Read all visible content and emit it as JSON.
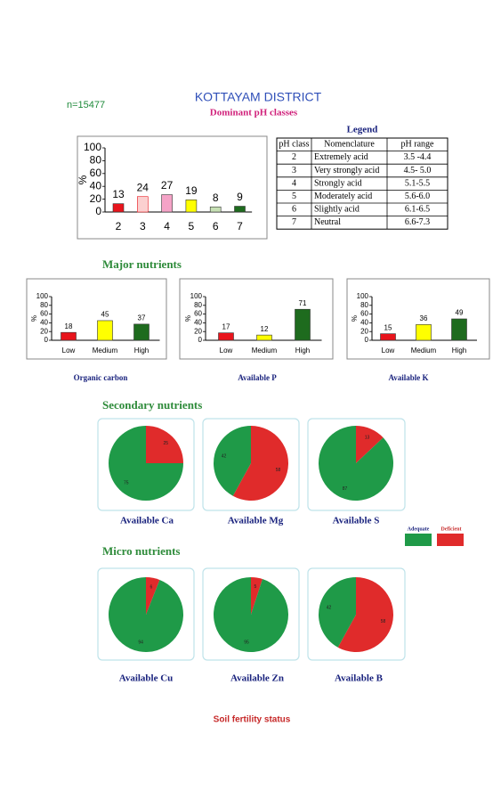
{
  "header": {
    "title": "KOTTAYAM  DISTRICT",
    "subtitle": "Dominant pH classes",
    "n": "n=15477"
  },
  "legend_table": {
    "title": "Legend",
    "columns": [
      "pH class",
      "Nomenclature",
      "pH range"
    ],
    "rows": [
      [
        "2",
        "Extremely acid",
        "3.5 -4.4"
      ],
      [
        "3",
        "Very strongly acid",
        "4.5- 5.0"
      ],
      [
        "4",
        "Strongly acid",
        "5.1-5.5"
      ],
      [
        "5",
        "Moderately acid",
        "5.6-6.0"
      ],
      [
        "6",
        "Slightly acid",
        "6.1-6.5"
      ],
      [
        "7",
        "Neutral",
        "6.6-7.3"
      ]
    ]
  },
  "sections": {
    "major": "Major nutrients",
    "secondary": "Secondary nutrients",
    "micro": "Micro nutrients"
  },
  "footer": "Soil fertility status",
  "chart_data": [
    {
      "type": "bar",
      "categories": [
        "2",
        "3",
        "4",
        "5",
        "6",
        "7"
      ],
      "values": [
        13,
        24,
        27,
        19,
        8,
        9
      ],
      "colors": [
        "#e8141c",
        "#fbd0d0",
        "#f5a3c7",
        "#ffff00",
        "#c6e0b4",
        "#1e6b1e"
      ],
      "ylim": [
        0,
        100
      ],
      "yticks": [
        0,
        20,
        40,
        60,
        80,
        100
      ],
      "y_label": "%"
    },
    {
      "type": "bar",
      "caption": "Organic carbon",
      "categories": [
        "Low",
        "Medium",
        "High"
      ],
      "values": [
        18,
        45,
        37
      ],
      "colors": [
        "#e8141c",
        "#ffff00",
        "#1e6b1e"
      ],
      "ylim": [
        0,
        100
      ],
      "yticks": [
        0,
        20,
        40,
        60,
        80,
        100
      ],
      "y_label": "%"
    },
    {
      "type": "bar",
      "caption": "Available  P",
      "categories": [
        "Low",
        "Medium",
        "High"
      ],
      "values": [
        17,
        12,
        71
      ],
      "colors": [
        "#e8141c",
        "#ffff00",
        "#1e6b1e"
      ],
      "ylim": [
        0,
        100
      ],
      "yticks": [
        0,
        20,
        40,
        60,
        80,
        100
      ],
      "y_label": "%"
    },
    {
      "type": "bar",
      "caption": "Available  K",
      "categories": [
        "Low",
        "Medium",
        "High"
      ],
      "values": [
        15,
        36,
        49
      ],
      "colors": [
        "#e8141c",
        "#ffff00",
        "#1e6b1e"
      ],
      "ylim": [
        0,
        100
      ],
      "yticks": [
        0,
        20,
        40,
        60,
        80,
        100
      ],
      "y_label": "%"
    },
    {
      "type": "pie",
      "caption": "Available  Ca",
      "categories": [
        "Adequate",
        "Deficient"
      ],
      "values": [
        75,
        25
      ],
      "colors": [
        "#1f9a48",
        "#e02b2b"
      ]
    },
    {
      "type": "pie",
      "caption": "Available  Mg",
      "categories": [
        "Adequate",
        "Deficient"
      ],
      "values": [
        42,
        58
      ],
      "colors": [
        "#1f9a48",
        "#e02b2b"
      ]
    },
    {
      "type": "pie",
      "caption": "Available  S",
      "categories": [
        "Adequate",
        "Deficient"
      ],
      "values": [
        87,
        13
      ],
      "colors": [
        "#1f9a48",
        "#e02b2b"
      ]
    },
    {
      "type": "pie",
      "caption": "Available Cu",
      "categories": [
        "Adequate",
        "Deficient"
      ],
      "values": [
        94,
        6
      ],
      "colors": [
        "#1f9a48",
        "#e02b2b"
      ]
    },
    {
      "type": "pie",
      "caption": "Available  Zn",
      "categories": [
        "Adequate",
        "Deficient"
      ],
      "values": [
        95,
        5
      ],
      "colors": [
        "#1f9a48",
        "#e02b2b"
      ]
    },
    {
      "type": "pie",
      "caption": "Available  B",
      "categories": [
        "Adequate",
        "Deficient"
      ],
      "values": [
        42,
        58
      ],
      "colors": [
        "#1f9a48",
        "#e02b2b"
      ]
    }
  ]
}
